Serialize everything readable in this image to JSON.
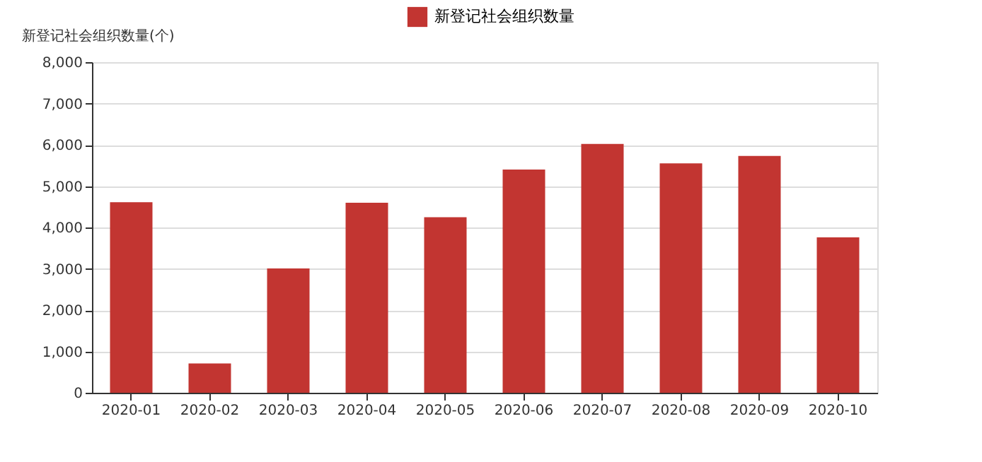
{
  "chart_data": {
    "type": "bar",
    "ylabel": "新登记社会组织数量(个)",
    "categories": [
      "2020-01",
      "2020-02",
      "2020-03",
      "2020-04",
      "2020-05",
      "2020-06",
      "2020-07",
      "2020-08",
      "2020-09",
      "2020-10"
    ],
    "series": [
      {
        "name": "新登记社会组织数量",
        "color": "#c23531",
        "values": [
          4610,
          710,
          3010,
          4600,
          4250,
          5400,
          6020,
          5550,
          5730,
          3760
        ]
      }
    ],
    "ylim": [
      0,
      8000
    ],
    "yticks": [
      0,
      {
        "value": 1000,
        "label": "1,000"
      },
      {
        "value": 2000,
        "label": "2,000"
      },
      {
        "value": 3000,
        "label": "3,000"
      },
      {
        "value": 4000,
        "label": "4,000"
      },
      {
        "value": 5000,
        "label": "5,000"
      },
      {
        "value": 6000,
        "label": "6,000"
      },
      {
        "value": 7000,
        "label": "7,000"
      },
      {
        "value": 8000,
        "label": "8,000"
      }
    ],
    "grid": "y",
    "legend": "top"
  }
}
